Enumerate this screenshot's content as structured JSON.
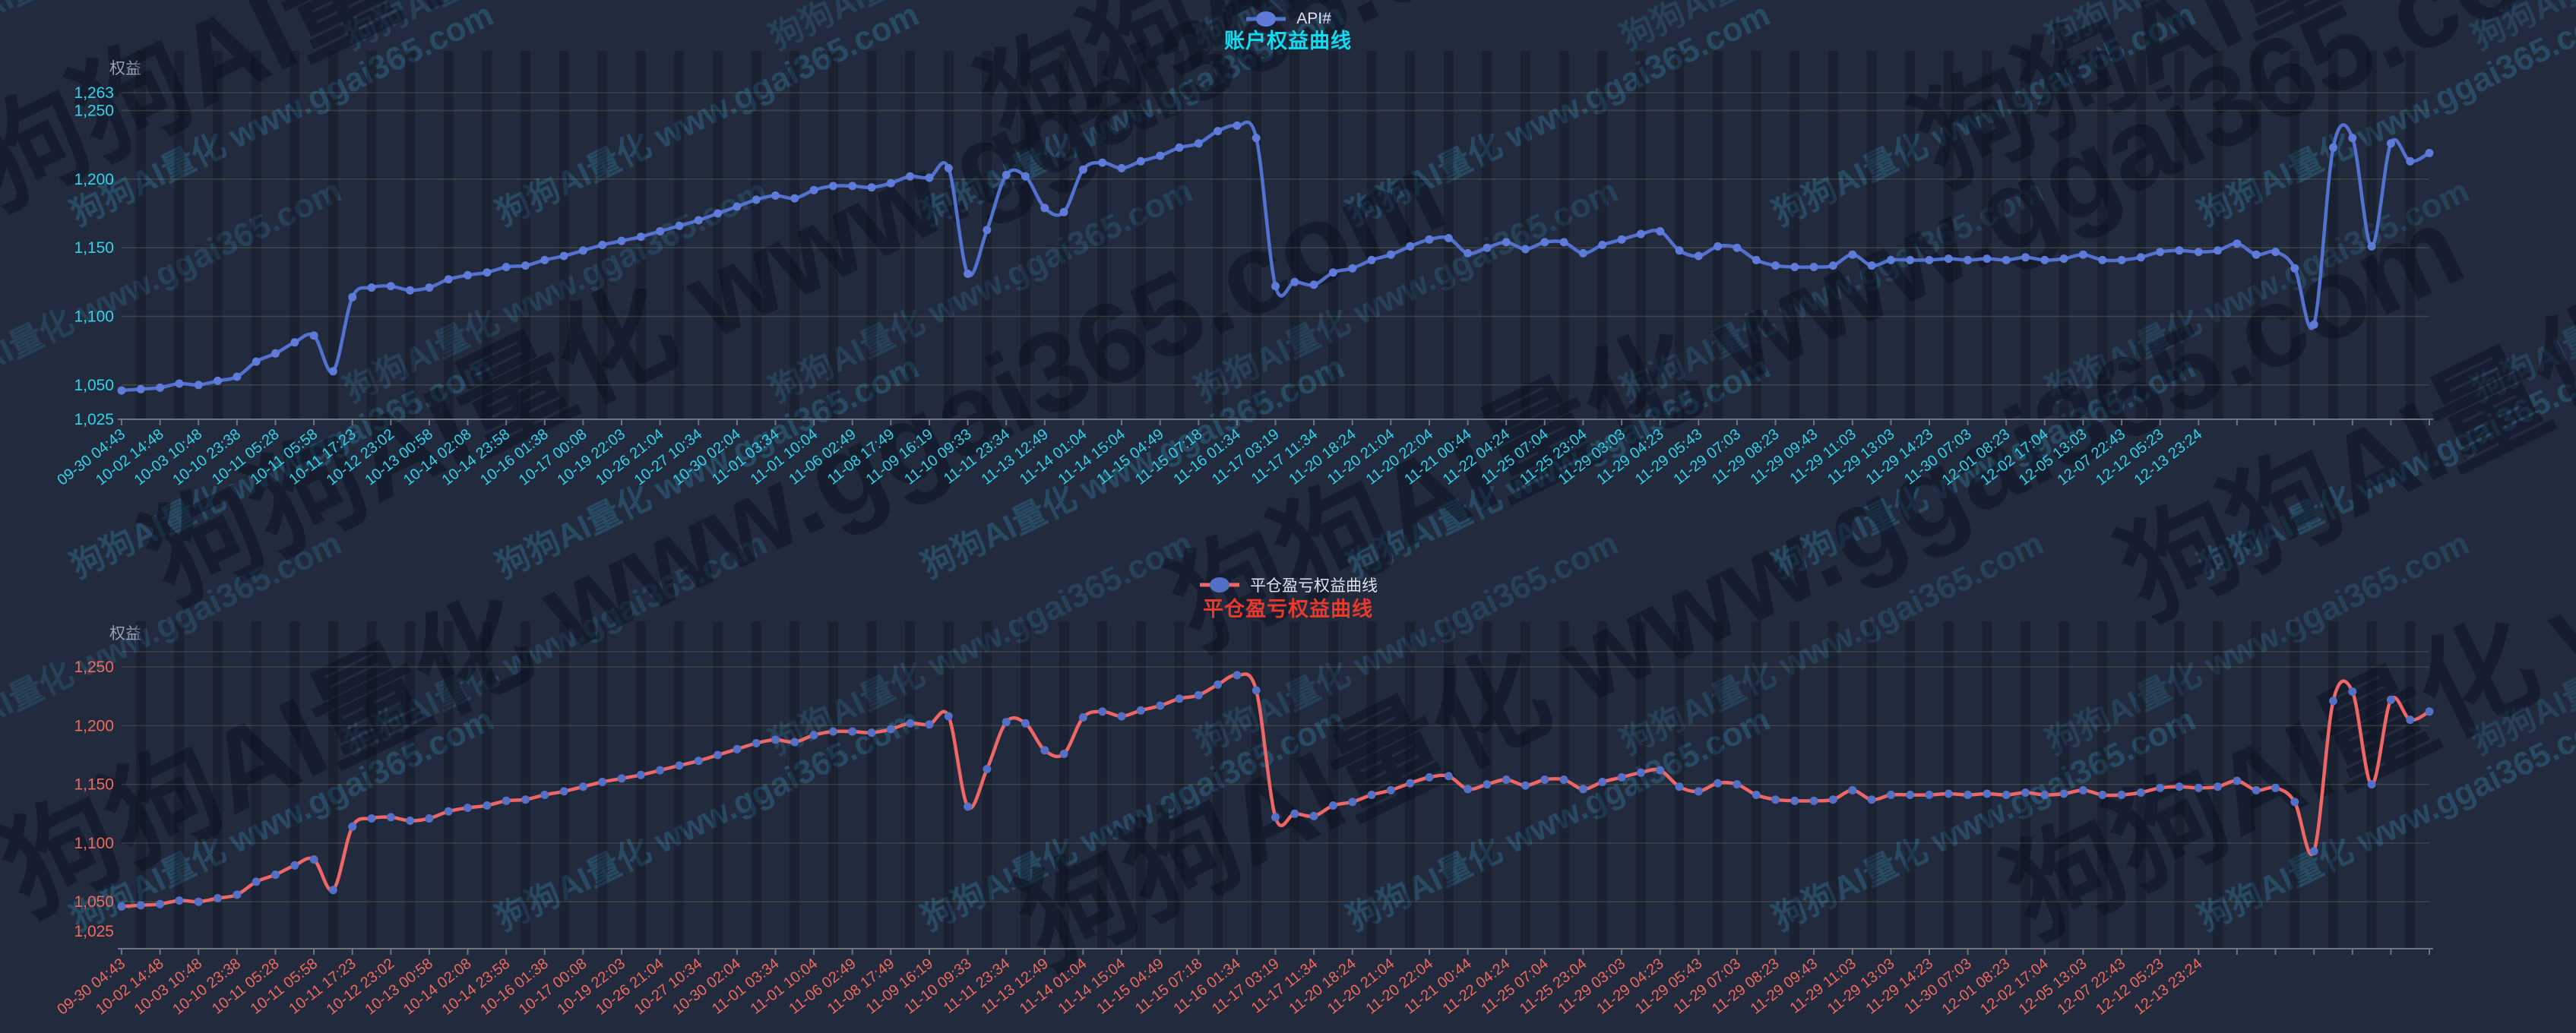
{
  "page": {
    "background_color": "#222a3d"
  },
  "watermark": {
    "text": "狗狗AI量化 www.ggai365.com"
  },
  "charts": [
    {
      "legend_label": "API#",
      "title": "账户权益曲线",
      "title_color": "#0fdcef",
      "y_axis_name": "权益",
      "line_color": "#5371cf",
      "dot_color": "#5f7bd9",
      "axis_label_color": "#30d3ea",
      "axis_line_color": "#6e7480",
      "grid_line_color": "rgba(190,178,115,0.20)"
    },
    {
      "legend_label": "平仓盈亏权益曲线",
      "title": "平仓盈亏权益曲线",
      "title_color": "#e8392a",
      "y_axis_name": "权益",
      "line_color": "#ee6666",
      "dot_color": "#5470c6",
      "axis_label_color": "#ef6a5d",
      "axis_line_color": "#6e7480",
      "grid_line_color": "rgba(190,178,115,0.20)"
    }
  ],
  "chart_data": [
    {
      "type": "line",
      "title": "账户权益曲线",
      "series_name": "API#",
      "ylabel": "权益",
      "ylim": [
        1025,
        1263
      ],
      "grid": true,
      "legend_position": "top-center",
      "x_label_every_n_points": 2,
      "y_ticks": [
        {
          "label": "1,025",
          "value": 1025,
          "grid": false
        },
        {
          "label": "1,050",
          "value": 1050,
          "grid": true
        },
        {
          "label": "1,100",
          "value": 1100,
          "grid": true
        },
        {
          "label": "1,150",
          "value": 1150,
          "grid": true
        },
        {
          "label": "1,200",
          "value": 1200,
          "grid": true
        },
        {
          "label": "1,250",
          "value": 1250,
          "grid": true
        },
        {
          "label": "1,263",
          "value": 1263,
          "grid": true
        }
      ],
      "x_labels": [
        "09-30 04:43",
        "10-02 14:48",
        "10-03 10:48",
        "10-10 23:38",
        "10-11 05:28",
        "10-11 05:58",
        "10-11 17:23",
        "10-12 23:02",
        "10-13 00:58",
        "10-14 02:08",
        "10-14 23:58",
        "10-16 01:38",
        "10-17 00:08",
        "10-19 22:03",
        "10-26 21:04",
        "10-27 10:34",
        "10-30 02:04",
        "11-01 03:34",
        "11-01 10:04",
        "11-06 02:49",
        "11-08 17:49",
        "11-09 16:19",
        "11-10 09:33",
        "11-11 23:34",
        "11-13 12:49",
        "11-14 01:04",
        "11-14 15:04",
        "11-15 04:49",
        "11-15 07:18",
        "11-16 01:34",
        "11-17 03:19",
        "11-17 11:34",
        "11-20 18:24",
        "11-20 21:04",
        "11-20 22:04",
        "11-21 00:44",
        "11-22 04:24",
        "11-25 07:04",
        "11-25 23:04",
        "11-29 03:03",
        "11-29 04:23",
        "11-29 05:43",
        "11-29 07:03",
        "11-29 08:23",
        "11-29 09:43",
        "11-29 11:03",
        "11-29 13:03",
        "11-29 14:23",
        "11-30 07:03",
        "12-01 08:23",
        "12-02 17:04",
        "12-05 13:03",
        "12-07 22:43",
        "12-12 05:23",
        "12-13 23:24"
      ],
      "values": [
        1046,
        1047,
        1048,
        1051,
        1050,
        1053,
        1056,
        1067,
        1073,
        1081,
        1086,
        1060,
        1114,
        1121,
        1122,
        1119,
        1121,
        1127,
        1130,
        1132,
        1136,
        1137,
        1141,
        1144,
        1148,
        1152,
        1155,
        1158,
        1162,
        1166,
        1170,
        1175,
        1180,
        1185,
        1188,
        1186,
        1192,
        1195,
        1195,
        1194,
        1197,
        1202,
        1201,
        1208,
        1131,
        1163,
        1203,
        1202,
        1179,
        1176,
        1207,
        1212,
        1208,
        1213,
        1217,
        1223,
        1226,
        1235,
        1239,
        1230,
        1122,
        1125,
        1123,
        1132,
        1135,
        1141,
        1145,
        1151,
        1156,
        1157,
        1146,
        1150,
        1154,
        1149,
        1154,
        1154,
        1146,
        1152,
        1156,
        1160,
        1162,
        1148,
        1144,
        1151,
        1150,
        1141,
        1137,
        1136,
        1136,
        1137,
        1145,
        1137,
        1141,
        1141,
        1141,
        1142,
        1141,
        1142,
        1141,
        1143,
        1141,
        1142,
        1145,
        1141,
        1141,
        1143,
        1147,
        1148,
        1147,
        1148,
        1153,
        1145,
        1147,
        1135,
        1094,
        1223,
        1230,
        1151,
        1226,
        1213,
        1219
      ]
    },
    {
      "type": "line",
      "title": "平仓盈亏权益曲线",
      "series_name": "平仓盈亏权益曲线",
      "ylabel": "权益",
      "ylim": [
        1010,
        1263
      ],
      "grid": true,
      "legend_position": "top-center",
      "x_label_every_n_points": 2,
      "y_ticks": [
        {
          "label": "1,025",
          "value": 1025,
          "grid": false
        },
        {
          "label": "1,050",
          "value": 1050,
          "grid": true
        },
        {
          "label": "1,100",
          "value": 1100,
          "grid": true
        },
        {
          "label": "1,150",
          "value": 1150,
          "grid": true
        },
        {
          "label": "1,200",
          "value": 1200,
          "grid": true
        },
        {
          "label": "1,250",
          "value": 1250,
          "grid": true
        },
        {
          "label": "",
          "value": 1263,
          "grid": true
        }
      ],
      "x_labels": [
        "09-30 04:43",
        "10-02 14:48",
        "10-03 10:48",
        "10-10 23:38",
        "10-11 05:28",
        "10-11 05:58",
        "10-11 17:23",
        "10-12 23:02",
        "10-13 00:58",
        "10-14 02:08",
        "10-14 23:58",
        "10-16 01:38",
        "10-17 00:08",
        "10-19 22:03",
        "10-26 21:04",
        "10-27 10:34",
        "10-30 02:04",
        "11-01 03:34",
        "11-01 10:04",
        "11-06 02:49",
        "11-08 17:49",
        "11-09 16:19",
        "11-10 09:33",
        "11-11 23:34",
        "11-13 12:49",
        "11-14 01:04",
        "11-14 15:04",
        "11-15 04:49",
        "11-15 07:18",
        "11-16 01:34",
        "11-17 03:19",
        "11-17 11:34",
        "11-20 18:24",
        "11-20 21:04",
        "11-20 22:04",
        "11-21 00:44",
        "11-22 04:24",
        "11-25 07:04",
        "11-25 23:04",
        "11-29 03:03",
        "11-29 04:23",
        "11-29 05:43",
        "11-29 07:03",
        "11-29 08:23",
        "11-29 09:43",
        "11-29 11:03",
        "11-29 13:03",
        "11-29 14:23",
        "11-30 07:03",
        "12-01 08:23",
        "12-02 17:04",
        "12-05 13:03",
        "12-07 22:43",
        "12-12 05:23",
        "12-13 23:24"
      ],
      "values": [
        1046,
        1047,
        1048,
        1051,
        1050,
        1053,
        1056,
        1067,
        1073,
        1081,
        1086,
        1060,
        1114,
        1121,
        1122,
        1119,
        1121,
        1127,
        1130,
        1132,
        1136,
        1137,
        1141,
        1144,
        1148,
        1152,
        1155,
        1158,
        1162,
        1166,
        1170,
        1175,
        1180,
        1185,
        1188,
        1186,
        1192,
        1195,
        1195,
        1194,
        1197,
        1202,
        1201,
        1208,
        1131,
        1163,
        1203,
        1202,
        1179,
        1176,
        1207,
        1212,
        1208,
        1213,
        1217,
        1223,
        1226,
        1235,
        1243,
        1230,
        1122,
        1125,
        1123,
        1132,
        1135,
        1141,
        1145,
        1151,
        1156,
        1157,
        1146,
        1150,
        1154,
        1149,
        1154,
        1154,
        1146,
        1152,
        1156,
        1160,
        1162,
        1148,
        1144,
        1151,
        1150,
        1141,
        1137,
        1136,
        1136,
        1137,
        1145,
        1137,
        1141,
        1141,
        1141,
        1142,
        1141,
        1142,
        1141,
        1143,
        1141,
        1142,
        1145,
        1141,
        1141,
        1143,
        1147,
        1148,
        1147,
        1148,
        1153,
        1145,
        1147,
        1135,
        1093,
        1221,
        1229,
        1150,
        1222,
        1205,
        1212
      ]
    }
  ]
}
